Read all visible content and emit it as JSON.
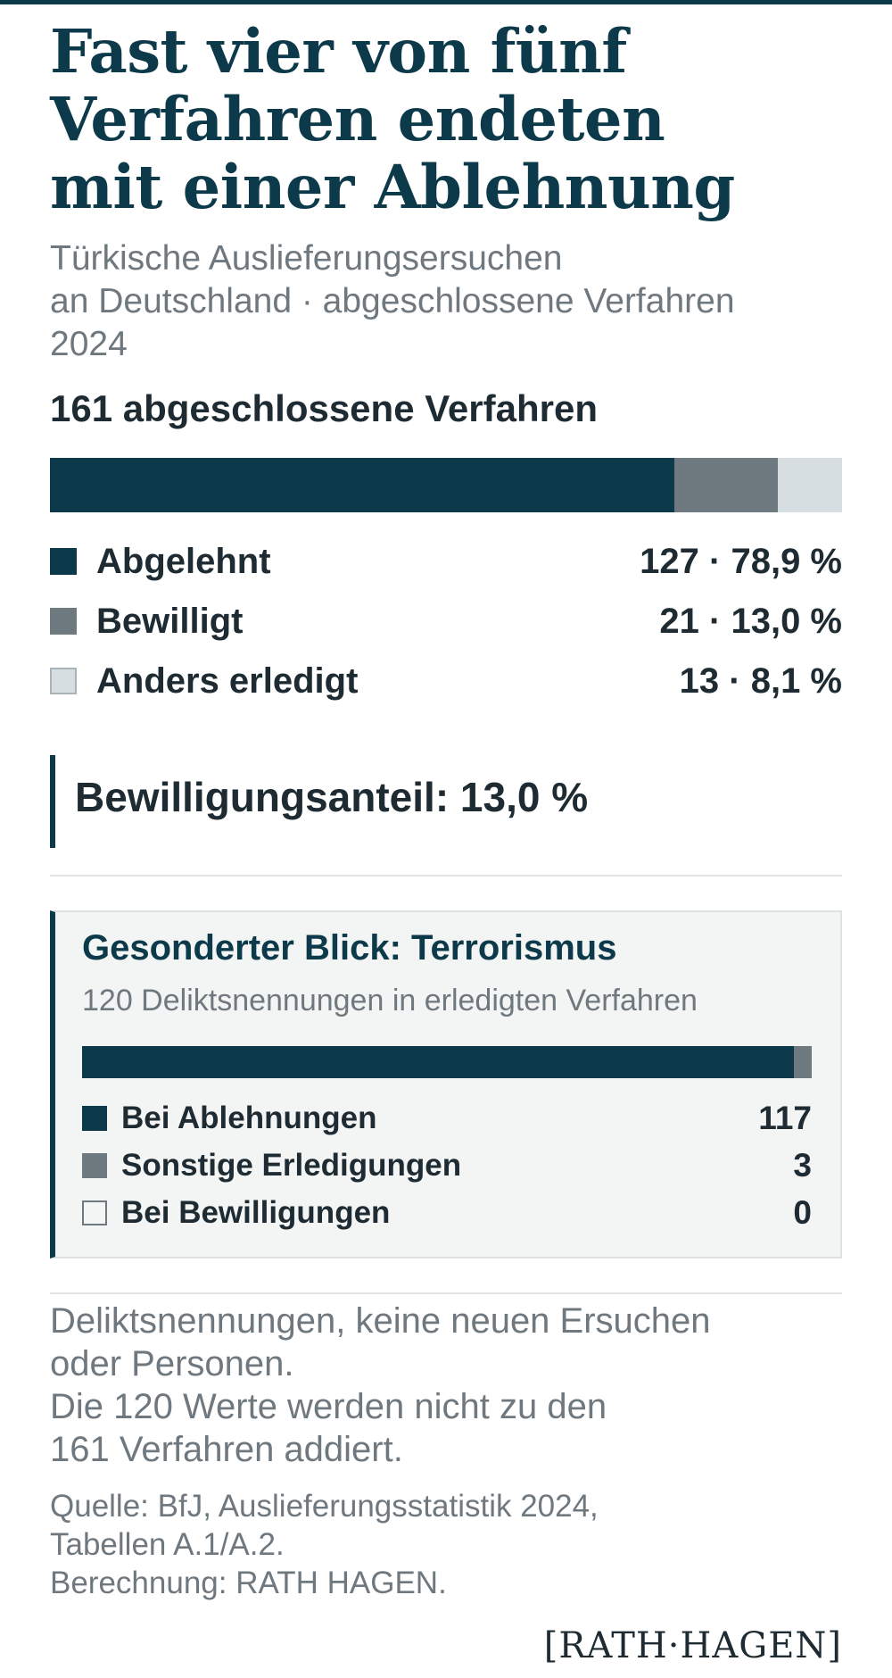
{
  "header": {
    "title_lines": [
      "Fast vier von fünf",
      "Verfahren endeten",
      "mit einer Ablehnung"
    ],
    "subtitle_lines": [
      "Türkische Auslieferungsersuchen",
      "an Deutschland · abgeschlossene Verfahren",
      "2024"
    ]
  },
  "colors": {
    "accent_dark": "#0c3a4a",
    "mid_gray": "#6e7a80",
    "light_gray": "#d7dee1",
    "text_gray": "#6f787e"
  },
  "main": {
    "section_head": "161 abgeschlossene Verfahren",
    "callout": "Bewilligungsanteil: 13,0 %"
  },
  "terror_box": {
    "title": "Gesonderter Blick: Terrorismus",
    "subtitle": "120 Deliktsnennungen in erledigten Verfahren"
  },
  "notes": {
    "lines": [
      "Deliktsnennungen, keine neuen Ersuchen",
      "oder Personen.",
      "Die 120 Werte werden nicht zu den",
      "161 Verfahren addiert."
    ]
  },
  "source": {
    "lines": [
      "Quelle: BfJ, Auslieferungsstatistik 2024,",
      "Tabellen A.1/A.2.",
      "Berechnung: RATH HAGEN."
    ]
  },
  "logo": {
    "text": "RATH·HAGEN"
  },
  "chart_data": [
    {
      "type": "bar",
      "orientation": "horizontal-stacked",
      "title": "161 abgeschlossene Verfahren",
      "total": 161,
      "categories": [
        "Abgelehnt",
        "Bewilligt",
        "Anders erledigt"
      ],
      "values": [
        127,
        21,
        13
      ],
      "value_labels": [
        "127 · 78,9 %",
        "21 · 13,0 %",
        "13 · 8,1 %"
      ],
      "colors": [
        "#0c3a4a",
        "#6e7a80",
        "#d7dee1"
      ],
      "legend": "below"
    },
    {
      "type": "bar",
      "orientation": "horizontal-stacked",
      "title": "Gesonderter Blick: Terrorismus",
      "total": 120,
      "categories": [
        "Bei Ablehnungen",
        "Sonstige Erledigungen",
        "Bei Bewilligungen"
      ],
      "values": [
        117,
        3,
        0
      ],
      "value_labels": [
        "117",
        "3",
        "0"
      ],
      "colors": [
        "#0c3a4a",
        "#6e7a80",
        "#f3f4f4"
      ],
      "legend": "below"
    }
  ]
}
